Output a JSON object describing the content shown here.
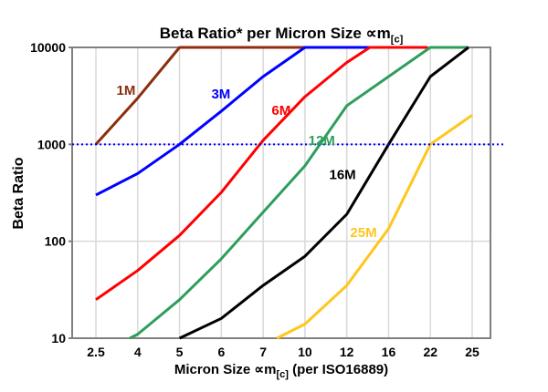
{
  "title_parts": {
    "main": "Beta Ratio* per Micron Size ",
    "symbol": "∝m",
    "sub": "[c]"
  },
  "xlabel_parts": {
    "main": "Micron Size ∝m",
    "sub": "[c]",
    "rest": " (per ISO16889)"
  },
  "chart_data": {
    "type": "line",
    "title": "Beta Ratio* per Micron Size ∝m[c]",
    "xlabel": "Micron Size ∝m[c] (per ISO16889)",
    "ylabel": "Beta Ratio",
    "x_scale": "category",
    "y_scale": "log",
    "ylim": [
      10,
      10000
    ],
    "grid": true,
    "x_ticks": [
      "2.5",
      "4",
      "5",
      "6",
      "7",
      "10",
      "12",
      "16",
      "22",
      "25"
    ],
    "y_ticks": [
      {
        "label": "10",
        "value": 10
      },
      {
        "label": "100",
        "value": 100
      },
      {
        "label": "1000",
        "value": 1000
      },
      {
        "label": "10000",
        "value": 10000
      }
    ],
    "reference_line": {
      "value": 1000,
      "color": "#0000FF",
      "style": "dotted"
    },
    "x_axis_note": "series points use fractional tick index on the categorical x axis",
    "series": [
      {
        "name": "1M",
        "color": "#8C2E0B",
        "label_at": [
          0.72,
          3600
        ],
        "points": [
          [
            0,
            1000
          ],
          [
            1,
            3000
          ],
          [
            2,
            10000
          ],
          [
            5,
            10000
          ]
        ]
      },
      {
        "name": "3M",
        "color": "#0000FF",
        "label_at": [
          2.99,
          3300
        ],
        "points": [
          [
            0,
            300
          ],
          [
            1,
            500
          ],
          [
            2,
            1000
          ],
          [
            3,
            2200
          ],
          [
            4,
            5000
          ],
          [
            5,
            10000
          ],
          [
            6.55,
            10000
          ]
        ]
      },
      {
        "name": "6M",
        "color": "#FF0000",
        "label_at": [
          4.43,
          2250
        ],
        "points": [
          [
            0,
            25
          ],
          [
            1,
            50
          ],
          [
            2,
            115
          ],
          [
            3,
            320
          ],
          [
            4,
            1100
          ],
          [
            5,
            3100
          ],
          [
            6,
            7000
          ],
          [
            6.55,
            10000
          ],
          [
            7.93,
            10000
          ]
        ]
      },
      {
        "name": "12M",
        "color": "#2E9E5B",
        "label_at": [
          5.4,
          1100
        ],
        "points": [
          [
            0.81,
            10
          ],
          [
            1,
            11
          ],
          [
            2,
            25
          ],
          [
            3,
            66
          ],
          [
            4,
            200
          ],
          [
            5,
            600
          ],
          [
            6,
            2500
          ],
          [
            8,
            10000
          ],
          [
            8.91,
            10000
          ]
        ]
      },
      {
        "name": "16M",
        "color": "#000000",
        "label_at": [
          5.9,
          490
        ],
        "points": [
          [
            2,
            10
          ],
          [
            3,
            16
          ],
          [
            4,
            35
          ],
          [
            5,
            70
          ],
          [
            6,
            190
          ],
          [
            7,
            1000
          ],
          [
            8,
            5000
          ],
          [
            8.91,
            10000
          ]
        ]
      },
      {
        "name": "25M",
        "color": "#FFC61E",
        "label_at": [
          6.4,
          123
        ],
        "points": [
          [
            4.33,
            10
          ],
          [
            5,
            14
          ],
          [
            6,
            35
          ],
          [
            7,
            135
          ],
          [
            8,
            1000
          ],
          [
            9,
            2000
          ]
        ]
      }
    ]
  }
}
